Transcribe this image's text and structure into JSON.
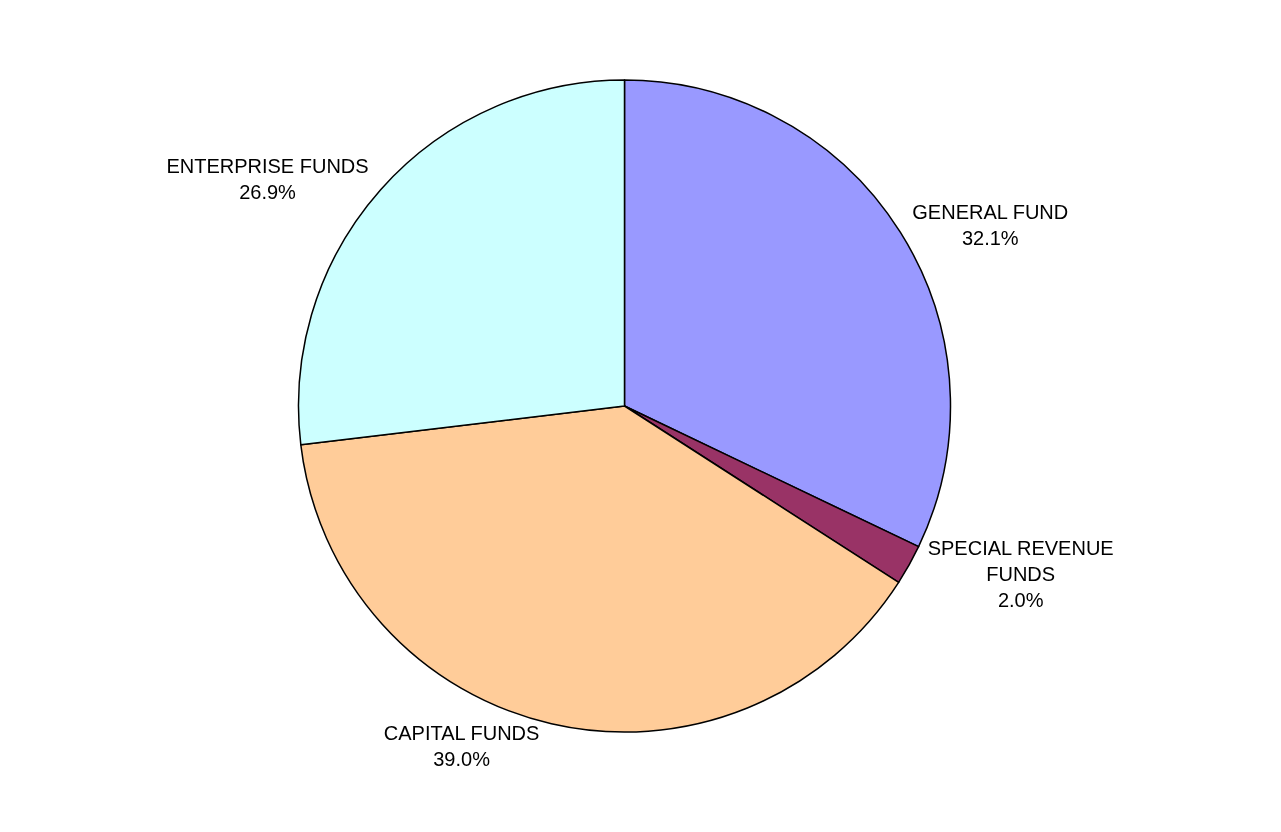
{
  "chart_data": {
    "type": "pie",
    "categories": [
      "GENERAL FUND",
      "SPECIAL REVENUE FUNDS",
      "CAPITAL FUNDS",
      "ENTERPRISE FUNDS"
    ],
    "values": [
      32.1,
      2.0,
      39.0,
      26.9
    ],
    "value_labels": [
      "32.1%",
      "2.0%",
      "39.0%",
      "26.9%"
    ],
    "colors": [
      "#9999ff",
      "#993366",
      "#ffcc99",
      "#ccffff"
    ],
    "legend": false
  }
}
